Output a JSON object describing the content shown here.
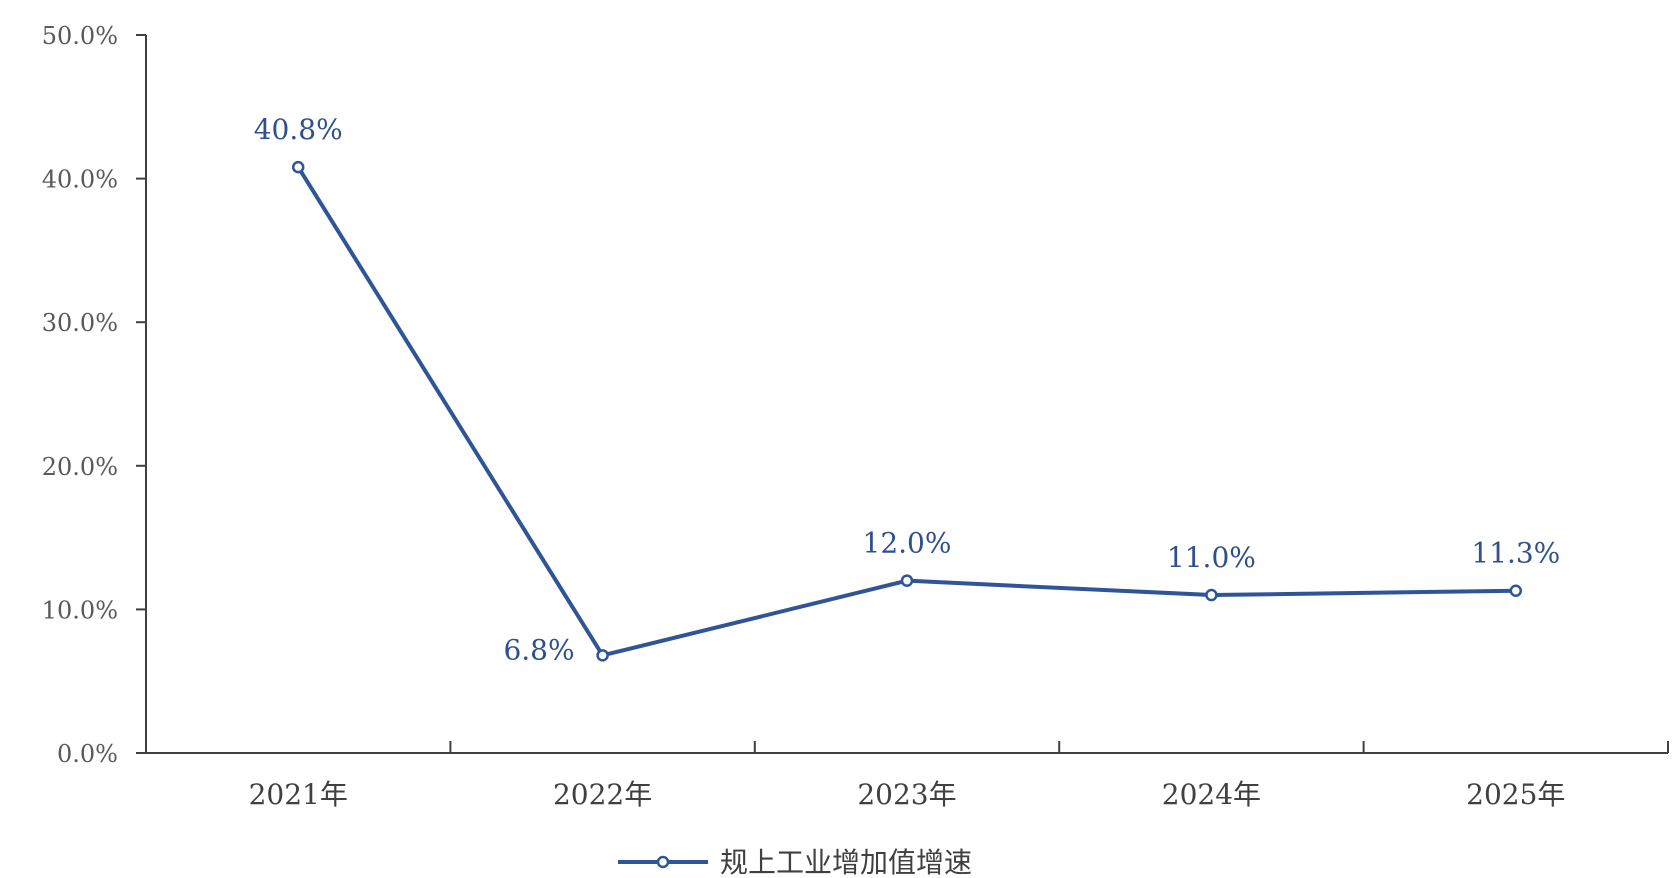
{
  "chart_data": {
    "type": "line",
    "categories": [
      "2021年",
      "2022年",
      "2023年",
      "2024年",
      "2025年"
    ],
    "series": [
      {
        "name": "规上工业增加值增速",
        "values": [
          40.8,
          6.8,
          12.0,
          11.0,
          11.3
        ],
        "labels": [
          "40.8%",
          "6.8%",
          "12.0%",
          "11.0%",
          "11.3%"
        ],
        "color": "#2f5597"
      }
    ],
    "y_ticks": [
      "0.0%",
      "10.0%",
      "20.0%",
      "30.0%",
      "40.0%",
      "50.0%"
    ],
    "ylim": [
      0,
      50
    ],
    "grid": false,
    "legend_position": "bottom"
  }
}
